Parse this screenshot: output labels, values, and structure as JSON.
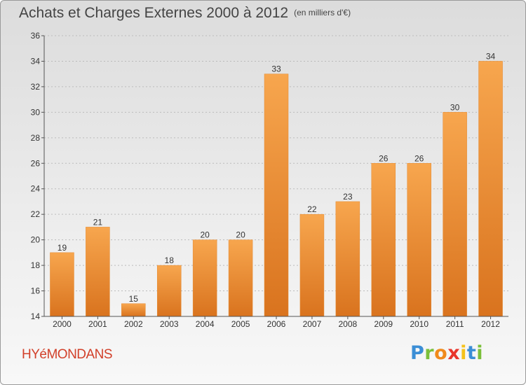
{
  "header": {
    "title": "Achats et Charges Externes 2000 à 2012",
    "unit": "(en milliers d'€)"
  },
  "footer": {
    "commune": "HYéMONDANS",
    "logo_letters": [
      "P",
      "r",
      "o",
      "x",
      "i",
      "t",
      "i"
    ],
    "logo_colors": [
      "#3b8ed6",
      "#7bbf3a",
      "#f08a1c",
      "#e8352b",
      "#f5c21b",
      "#3b8ed6",
      "#7bbf3a"
    ]
  },
  "colors": {
    "bar_top": "#f7a64e",
    "bar_bottom": "#d9731e",
    "grid": "#bbbbbb",
    "axis": "#555555"
  },
  "chart_data": {
    "type": "bar",
    "title": "Achats et Charges Externes 2000 à 2012",
    "categories": [
      "2000",
      "2001",
      "2002",
      "2003",
      "2004",
      "2005",
      "2006",
      "2007",
      "2008",
      "2009",
      "2010",
      "2011",
      "2012"
    ],
    "values": [
      19,
      21,
      15,
      18,
      20,
      20,
      33,
      22,
      23,
      26,
      26,
      30,
      34
    ],
    "ylim": [
      14,
      36
    ],
    "yticks": [
      14,
      16,
      18,
      20,
      22,
      24,
      26,
      28,
      30,
      32,
      34,
      36
    ],
    "grid": true,
    "xlabel": "",
    "ylabel": ""
  }
}
